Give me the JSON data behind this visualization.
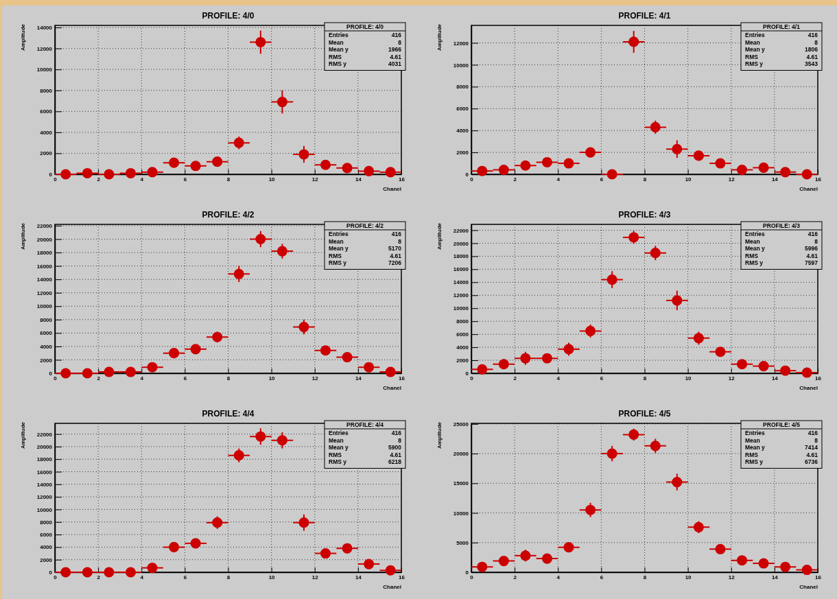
{
  "chart_data": [
    {
      "type": "scatter",
      "title": "PROFILE: 4/0",
      "xlabel": "Chanel",
      "ylabel": "Amplitude",
      "x": [
        0.5,
        1.5,
        2.5,
        3.5,
        4.5,
        5.5,
        6.5,
        7.5,
        8.5,
        9.5,
        10.5,
        11.5,
        12.5,
        13.5,
        14.5,
        15.5
      ],
      "xlim": [
        0,
        16
      ],
      "xticks": [
        0,
        2,
        4,
        6,
        8,
        10,
        12,
        14,
        16
      ],
      "ylim": [
        0,
        14200
      ],
      "yticks": [
        0,
        2000,
        4000,
        6000,
        8000,
        10000,
        12000,
        14000
      ],
      "grid": true,
      "marker": "circle",
      "color": "#cc0000",
      "values": [
        0,
        100,
        0,
        100,
        200,
        1100,
        800,
        1200,
        3000,
        12600,
        6900,
        1900,
        900,
        600,
        300,
        200
      ],
      "errors": [
        null,
        null,
        null,
        null,
        null,
        null,
        null,
        null,
        600,
        1100,
        1100,
        800,
        null,
        null,
        null,
        null
      ],
      "xerrors": [
        0.5,
        0.5,
        0.5,
        0.5,
        0.5,
        0.5,
        0.5,
        0.5,
        0.5,
        0.5,
        0.5,
        0.5,
        0.5,
        0.5,
        0.5,
        0.5
      ],
      "annotations": [
        "PROFILE: 4/0",
        "Entries",
        "416",
        "Mean",
        "8",
        "Mean y",
        "1966",
        "RMS",
        "4.61",
        "RMS y",
        "4031"
      ]
    },
    {
      "type": "scatter",
      "title": "PROFILE: 4/1",
      "xlabel": "Chanel",
      "ylabel": "Amplitude",
      "x": [
        0.5,
        1.5,
        2.5,
        3.5,
        4.5,
        5.5,
        6.5,
        7.5,
        8.5,
        9.5,
        10.5,
        11.5,
        12.5,
        13.5,
        14.5,
        15.5
      ],
      "xlim": [
        0,
        16
      ],
      "xticks": [
        0,
        2,
        4,
        6,
        8,
        10,
        12,
        14,
        16
      ],
      "ylim": [
        0,
        13600
      ],
      "yticks": [
        0,
        2000,
        4000,
        6000,
        8000,
        10000,
        12000
      ],
      "grid": true,
      "marker": "circle",
      "color": "#cc0000",
      "values": [
        300,
        400,
        800,
        1100,
        1000,
        2000,
        0,
        12100,
        4300,
        2300,
        1700,
        1000,
        400,
        600,
        200,
        0
      ],
      "errors": [
        null,
        null,
        null,
        null,
        null,
        null,
        null,
        1000,
        600,
        800,
        null,
        null,
        null,
        null,
        null,
        null
      ],
      "xerrors": [
        0.5,
        0.5,
        0.5,
        0.5,
        0.5,
        0.5,
        0.5,
        0.5,
        0.5,
        0.5,
        0.5,
        0.5,
        0.5,
        0.5,
        0.5,
        0.5
      ],
      "annotations": [
        "PROFILE: 4/1",
        "Entries",
        "416",
        "Mean",
        "8",
        "Mean y",
        "1806",
        "RMS",
        "4.61",
        "RMS y",
        "3543"
      ]
    },
    {
      "type": "scatter",
      "title": "PROFILE: 4/2",
      "xlabel": "Chanel",
      "ylabel": "Amplitude",
      "x": [
        0.5,
        1.5,
        2.5,
        3.5,
        4.5,
        5.5,
        6.5,
        7.5,
        8.5,
        9.5,
        10.5,
        11.5,
        12.5,
        13.5,
        14.5,
        15.5
      ],
      "xlim": [
        0,
        16
      ],
      "xticks": [
        0,
        2,
        4,
        6,
        8,
        10,
        12,
        14,
        16
      ],
      "ylim": [
        0,
        22200
      ],
      "yticks": [
        0,
        2000,
        4000,
        6000,
        8000,
        10000,
        12000,
        14000,
        16000,
        18000,
        20000,
        22000
      ],
      "grid": true,
      "marker": "circle",
      "color": "#cc0000",
      "values": [
        0,
        0,
        200,
        200,
        900,
        3000,
        3600,
        5400,
        14800,
        20000,
        18200,
        6900,
        3400,
        2400,
        900,
        200
      ],
      "errors": [
        null,
        null,
        null,
        null,
        null,
        null,
        null,
        800,
        1200,
        1200,
        1100,
        1100,
        null,
        null,
        null,
        null
      ],
      "xerrors": [
        0.5,
        0.5,
        0.5,
        0.5,
        0.5,
        0.5,
        0.5,
        0.5,
        0.5,
        0.5,
        0.5,
        0.5,
        0.5,
        0.5,
        0.5,
        0.5
      ],
      "annotations": [
        "PROFILE: 4/2",
        "Entries",
        "416",
        "Mean",
        "8",
        "Mean y",
        "5170",
        "RMS",
        "4.61",
        "RMS y",
        "7206"
      ]
    },
    {
      "type": "scatter",
      "title": "PROFILE: 4/3",
      "xlabel": "Chanel",
      "ylabel": "Amplitude",
      "x": [
        0.5,
        1.5,
        2.5,
        3.5,
        4.5,
        5.5,
        6.5,
        7.5,
        8.5,
        9.5,
        10.5,
        11.5,
        12.5,
        13.5,
        14.5,
        15.5
      ],
      "xlim": [
        0,
        16
      ],
      "xticks": [
        0,
        2,
        4,
        6,
        8,
        10,
        12,
        14,
        16
      ],
      "ylim": [
        0,
        22900
      ],
      "yticks": [
        0,
        2000,
        4000,
        6000,
        8000,
        10000,
        12000,
        14000,
        16000,
        18000,
        20000,
        22000
      ],
      "grid": true,
      "marker": "circle",
      "color": "#cc0000",
      "values": [
        600,
        1400,
        2300,
        2300,
        3700,
        6500,
        14400,
        20900,
        18500,
        11200,
        5400,
        3300,
        1400,
        1100,
        400,
        100
      ],
      "errors": [
        null,
        800,
        1000,
        null,
        1000,
        1000,
        1300,
        1000,
        1100,
        1500,
        1000,
        null,
        null,
        null,
        null,
        null
      ],
      "xerrors": [
        0.5,
        0.5,
        0.5,
        0.5,
        0.5,
        0.5,
        0.5,
        0.5,
        0.5,
        0.5,
        0.5,
        0.5,
        0.5,
        0.5,
        0.5,
        0.5
      ],
      "annotations": [
        "PROFILE: 4/3",
        "Entries",
        "416",
        "Mean",
        "8",
        "Mean y",
        "5996",
        "RMS",
        "4.61",
        "RMS y",
        "7597"
      ]
    },
    {
      "type": "scatter",
      "title": "PROFILE: 4/4",
      "xlabel": "Chanel",
      "ylabel": "Amplitude",
      "x": [
        0.5,
        1.5,
        2.5,
        3.5,
        4.5,
        5.5,
        6.5,
        7.5,
        8.5,
        9.5,
        10.5,
        11.5,
        12.5,
        13.5,
        14.5,
        15.5
      ],
      "xlim": [
        0,
        16
      ],
      "xticks": [
        0,
        2,
        4,
        6,
        8,
        10,
        12,
        14,
        16
      ],
      "ylim": [
        0,
        23700
      ],
      "yticks": [
        0,
        2000,
        4000,
        6000,
        8000,
        10000,
        12000,
        14000,
        16000,
        18000,
        20000,
        22000
      ],
      "grid": true,
      "marker": "circle",
      "color": "#cc0000",
      "values": [
        0,
        0,
        0,
        0,
        700,
        4000,
        4600,
        7900,
        18600,
        21600,
        21000,
        7900,
        3000,
        3800,
        1300,
        300
      ],
      "errors": [
        null,
        null,
        null,
        null,
        null,
        null,
        null,
        1000,
        1100,
        1300,
        1300,
        1300,
        800,
        800,
        null,
        null
      ],
      "xerrors": [
        0.5,
        0.5,
        0.5,
        0.5,
        0.5,
        0.5,
        0.5,
        0.5,
        0.5,
        0.5,
        0.5,
        0.5,
        0.5,
        0.5,
        0.5,
        0.5
      ],
      "annotations": [
        "PROFILE: 4/4",
        "Entries",
        "416",
        "Mean",
        "8",
        "Mean y",
        "5900",
        "RMS",
        "4.61",
        "RMS y",
        "6218"
      ]
    },
    {
      "type": "scatter",
      "title": "PROFILE: 4/5",
      "xlabel": "Chanel",
      "ylabel": "Amplitude",
      "x": [
        0.5,
        1.5,
        2.5,
        3.5,
        4.5,
        5.5,
        6.5,
        7.5,
        8.5,
        9.5,
        10.5,
        11.5,
        12.5,
        13.5,
        14.5,
        15.5
      ],
      "xlim": [
        0,
        16
      ],
      "xticks": [
        0,
        2,
        4,
        6,
        8,
        10,
        12,
        14,
        16
      ],
      "ylim": [
        0,
        25100
      ],
      "yticks": [
        0,
        5000,
        10000,
        15000,
        20000,
        25000
      ],
      "grid": true,
      "marker": "circle",
      "color": "#cc0000",
      "values": [
        900,
        1900,
        2800,
        2300,
        4200,
        10500,
        20000,
        23200,
        21300,
        15200,
        7600,
        3900,
        2000,
        1500,
        900,
        400
      ],
      "errors": [
        null,
        null,
        1000,
        null,
        null,
        1200,
        1300,
        1000,
        1200,
        1400,
        1000,
        null,
        null,
        null,
        null,
        null
      ],
      "xerrors": [
        0.5,
        0.5,
        0.5,
        0.5,
        0.5,
        0.5,
        0.5,
        0.5,
        0.5,
        0.5,
        0.5,
        0.5,
        0.5,
        0.5,
        0.5,
        0.5
      ],
      "annotations": [
        "PROFILE: 4/5",
        "Entries",
        "416",
        "Mean",
        "8",
        "Mean y",
        "7414",
        "RMS",
        "4.61",
        "RMS y",
        "6736"
      ]
    }
  ]
}
